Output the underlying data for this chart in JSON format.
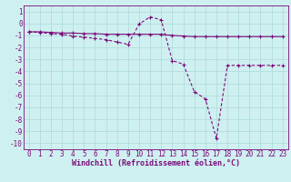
{
  "x": [
    0,
    1,
    2,
    3,
    4,
    5,
    6,
    7,
    8,
    9,
    10,
    11,
    12,
    13,
    14,
    15,
    16,
    17,
    18,
    19,
    20,
    21,
    22,
    23
  ],
  "line1": [
    -0.7,
    -0.7,
    -0.75,
    -0.8,
    -0.8,
    -0.85,
    -0.85,
    -0.9,
    -0.9,
    -0.9,
    -0.9,
    -0.9,
    -0.9,
    -1.0,
    -1.05,
    -1.1,
    -1.1,
    -1.1,
    -1.1,
    -1.1,
    -1.1,
    -1.1,
    -1.1,
    -1.1
  ],
  "line2": [
    -0.7,
    -0.75,
    -0.85,
    -0.9,
    -1.05,
    -1.15,
    -1.25,
    -1.35,
    -1.55,
    -1.75,
    -0.05,
    0.55,
    0.3,
    -3.1,
    -3.4,
    -5.7,
    -6.3,
    -9.6,
    -3.5,
    -3.5,
    -3.5,
    -3.5,
    -3.5,
    -3.5
  ],
  "line_color": "#7B0A7B",
  "marker": "+",
  "markersize": 3,
  "linewidth": 0.8,
  "bg_color": "#cff0f0",
  "grid_color": "#b0dede",
  "xlabel": "Windchill (Refroidissement éolien,°C)",
  "ylim": [
    -10.5,
    1.5
  ],
  "xlim": [
    -0.5,
    23.5
  ],
  "yticks": [
    1,
    0,
    -1,
    -2,
    -3,
    -4,
    -5,
    -6,
    -7,
    -8,
    -9,
    -10
  ],
  "xticks": [
    0,
    1,
    2,
    3,
    4,
    5,
    6,
    7,
    8,
    9,
    10,
    11,
    12,
    13,
    14,
    15,
    16,
    17,
    18,
    19,
    20,
    21,
    22,
    23
  ],
  "xlabel_fontsize": 6,
  "tick_fontsize": 5.5
}
